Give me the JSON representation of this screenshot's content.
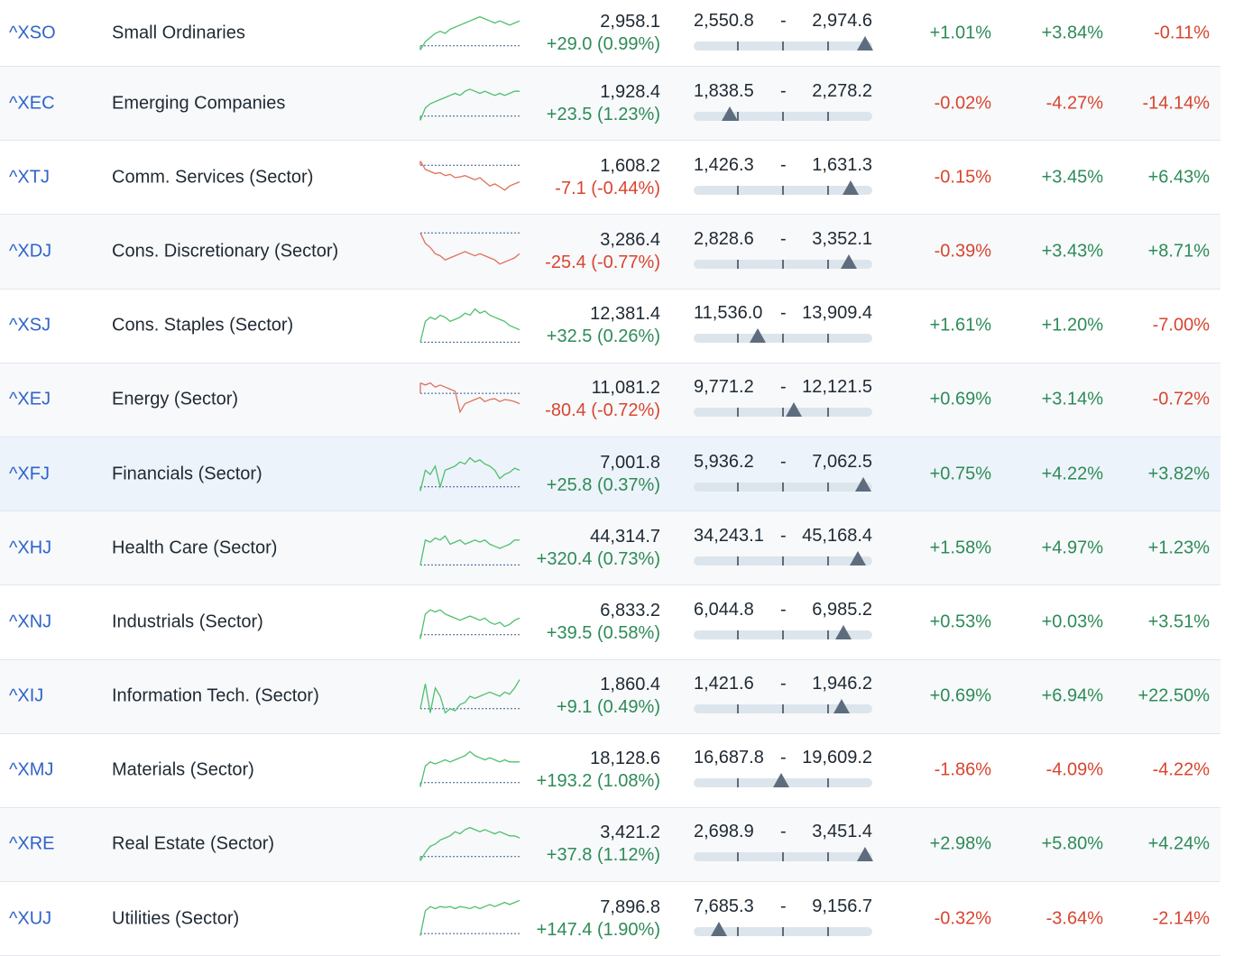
{
  "colors": {
    "up": "#2e8b57",
    "down": "#d8452f",
    "link": "#2f63c9",
    "highlight": "#edf3fa"
  },
  "rows": [
    {
      "symbol": "^XSO",
      "name": "Small Ordinaries",
      "price": "2,958.1",
      "change": "+29.0 (0.99%)",
      "dir": "up",
      "low": "2,550.8",
      "high": "2,974.6",
      "range_pos": 0.96,
      "c1": "+1.01%",
      "c2": "+3.84%",
      "c3": "-0.11%",
      "spark": [
        0.9,
        0.7,
        0.6,
        0.5,
        0.45,
        0.5,
        0.4,
        0.35,
        0.3,
        0.25,
        0.2,
        0.15,
        0.1,
        0.15,
        0.2,
        0.25,
        0.2,
        0.25,
        0.3,
        0.25,
        0.2
      ],
      "base": 0.8
    },
    {
      "symbol": "^XEC",
      "name": "Emerging Companies",
      "price": "1,928.4",
      "change": "+23.5 (1.23%)",
      "dir": "up",
      "low": "1,838.5",
      "high": "2,278.2",
      "range_pos": 0.2,
      "c1": "-0.02%",
      "c2": "-4.27%",
      "c3": "-14.14%",
      "spark": [
        0.9,
        0.6,
        0.5,
        0.45,
        0.4,
        0.35,
        0.3,
        0.25,
        0.3,
        0.2,
        0.15,
        0.2,
        0.25,
        0.2,
        0.25,
        0.3,
        0.25,
        0.3,
        0.25,
        0.2,
        0.2
      ],
      "base": 0.8
    },
    {
      "symbol": "^XTJ",
      "name": "Comm. Services (Sector)",
      "price": "1,608.2",
      "change": "-7.1 (-0.44%)",
      "dir": "dn",
      "low": "1,426.3",
      "high": "1,631.3",
      "range_pos": 0.88,
      "c1": "-0.15%",
      "c2": "+3.45%",
      "c3": "+6.43%",
      "spark": [
        0.1,
        0.3,
        0.35,
        0.4,
        0.38,
        0.45,
        0.42,
        0.5,
        0.48,
        0.45,
        0.5,
        0.55,
        0.5,
        0.6,
        0.7,
        0.65,
        0.72,
        0.8,
        0.7,
        0.65,
        0.6
      ],
      "base": 0.2
    },
    {
      "symbol": "^XDJ",
      "name": "Cons. Discretionary (Sector)",
      "price": "3,286.4",
      "change": "-25.4 (-0.77%)",
      "dir": "dn",
      "low": "2,828.6",
      "high": "3,352.1",
      "range_pos": 0.87,
      "c1": "-0.39%",
      "c2": "+3.43%",
      "c3": "+8.71%",
      "spark": [
        0.05,
        0.3,
        0.4,
        0.55,
        0.6,
        0.7,
        0.65,
        0.6,
        0.55,
        0.5,
        0.55,
        0.6,
        0.55,
        0.6,
        0.65,
        0.7,
        0.8,
        0.75,
        0.7,
        0.65,
        0.55
      ],
      "base": 0.05
    },
    {
      "symbol": "^XSJ",
      "name": "Cons. Staples (Sector)",
      "price": "12,381.4",
      "change": "+32.5 (0.26%)",
      "dir": "up",
      "low": "11,536.0",
      "high": "13,909.4",
      "range_pos": 0.36,
      "c1": "+1.61%",
      "c2": "+1.20%",
      "c3": "-7.00%",
      "spark": [
        0.9,
        0.4,
        0.3,
        0.35,
        0.25,
        0.3,
        0.4,
        0.35,
        0.3,
        0.2,
        0.25,
        0.1,
        0.2,
        0.15,
        0.25,
        0.3,
        0.35,
        0.4,
        0.5,
        0.55,
        0.6
      ],
      "base": 0.9
    },
    {
      "symbol": "^XEJ",
      "name": "Energy (Sector)",
      "price": "11,081.2",
      "change": "-80.4 (-0.72%)",
      "dir": "dn",
      "low": "9,771.2",
      "high": "12,121.5",
      "range_pos": 0.56,
      "c1": "+0.69%",
      "c2": "+3.14%",
      "c3": "-0.72%",
      "spark": [
        0.1,
        0.15,
        0.1,
        0.2,
        0.15,
        0.2,
        0.25,
        0.3,
        0.8,
        0.6,
        0.55,
        0.5,
        0.45,
        0.55,
        0.5,
        0.48,
        0.55,
        0.5,
        0.52,
        0.55,
        0.6
      ],
      "base": 0.35
    },
    {
      "symbol": "^XFJ",
      "name": "Financials (Sector)",
      "price": "7,001.8",
      "change": "+25.8 (0.37%)",
      "dir": "up",
      "low": "5,936.2",
      "high": "7,062.5",
      "range_pos": 0.95,
      "c1": "+0.75%",
      "c2": "+4.22%",
      "c3": "+3.82%",
      "spark": [
        0.9,
        0.4,
        0.5,
        0.3,
        0.8,
        0.4,
        0.35,
        0.3,
        0.2,
        0.25,
        0.1,
        0.2,
        0.15,
        0.25,
        0.3,
        0.4,
        0.6,
        0.5,
        0.45,
        0.35,
        0.4
      ],
      "base": 0.8
    },
    {
      "symbol": "^XHJ",
      "name": "Health Care (Sector)",
      "price": "44,314.7",
      "change": "+320.4 (0.73%)",
      "dir": "up",
      "low": "34,243.1",
      "high": "45,168.4",
      "range_pos": 0.92,
      "c1": "+1.58%",
      "c2": "+4.97%",
      "c3": "+1.23%",
      "spark": [
        0.9,
        0.3,
        0.35,
        0.25,
        0.3,
        0.2,
        0.4,
        0.35,
        0.3,
        0.4,
        0.35,
        0.3,
        0.35,
        0.3,
        0.4,
        0.45,
        0.5,
        0.45,
        0.4,
        0.3,
        0.3
      ],
      "base": 0.9
    },
    {
      "symbol": "^XNJ",
      "name": "Industrials (Sector)",
      "price": "6,833.2",
      "change": "+39.5 (0.58%)",
      "dir": "up",
      "low": "6,044.8",
      "high": "6,985.2",
      "range_pos": 0.84,
      "c1": "+0.53%",
      "c2": "+0.03%",
      "c3": "+3.51%",
      "spark": [
        0.9,
        0.3,
        0.2,
        0.25,
        0.2,
        0.3,
        0.35,
        0.4,
        0.45,
        0.4,
        0.35,
        0.4,
        0.45,
        0.4,
        0.5,
        0.55,
        0.5,
        0.6,
        0.55,
        0.45,
        0.4
      ],
      "base": 0.8
    },
    {
      "symbol": "^XIJ",
      "name": "Information Tech. (Sector)",
      "price": "1,860.4",
      "change": "+9.1 (0.49%)",
      "dir": "up",
      "low": "1,421.6",
      "high": "1,946.2",
      "range_pos": 0.83,
      "c1": "+0.69%",
      "c2": "+6.94%",
      "c3": "+22.50%",
      "spark": [
        0.8,
        0.2,
        0.9,
        0.3,
        0.5,
        0.9,
        0.8,
        0.85,
        0.7,
        0.65,
        0.5,
        0.55,
        0.5,
        0.45,
        0.4,
        0.45,
        0.5,
        0.4,
        0.45,
        0.3,
        0.1
      ],
      "base": 0.8
    },
    {
      "symbol": "^XMJ",
      "name": "Materials (Sector)",
      "price": "18,128.6",
      "change": "+193.2 (1.08%)",
      "dir": "up",
      "low": "16,687.8",
      "high": "19,609.2",
      "range_pos": 0.49,
      "c1": "-1.86%",
      "c2": "-4.09%",
      "c3": "-4.22%",
      "spark": [
        0.9,
        0.4,
        0.3,
        0.35,
        0.3,
        0.25,
        0.3,
        0.25,
        0.2,
        0.15,
        0.05,
        0.15,
        0.2,
        0.25,
        0.2,
        0.25,
        0.3,
        0.25,
        0.3,
        0.3,
        0.3
      ],
      "base": 0.8
    },
    {
      "symbol": "^XRE",
      "name": "Real Estate (Sector)",
      "price": "3,421.2",
      "change": "+37.8 (1.12%)",
      "dir": "up",
      "low": "2,698.9",
      "high": "3,451.4",
      "range_pos": 0.96,
      "c1": "+2.98%",
      "c2": "+5.80%",
      "c3": "+4.24%",
      "spark": [
        0.9,
        0.7,
        0.55,
        0.5,
        0.4,
        0.35,
        0.3,
        0.2,
        0.25,
        0.15,
        0.1,
        0.15,
        0.2,
        0.15,
        0.2,
        0.25,
        0.2,
        0.25,
        0.3,
        0.3,
        0.35
      ],
      "base": 0.8
    },
    {
      "symbol": "^XUJ",
      "name": "Utilities (Sector)",
      "price": "7,896.8",
      "change": "+147.4 (1.90%)",
      "dir": "up",
      "low": "7,685.3",
      "high": "9,156.7",
      "range_pos": 0.14,
      "c1": "-0.32%",
      "c2": "-3.64%",
      "c3": "-2.14%",
      "spark": [
        0.9,
        0.3,
        0.2,
        0.25,
        0.2,
        0.22,
        0.2,
        0.25,
        0.2,
        0.22,
        0.25,
        0.2,
        0.25,
        0.2,
        0.15,
        0.2,
        0.15,
        0.1,
        0.15,
        0.1,
        0.05
      ],
      "base": 0.85
    }
  ]
}
